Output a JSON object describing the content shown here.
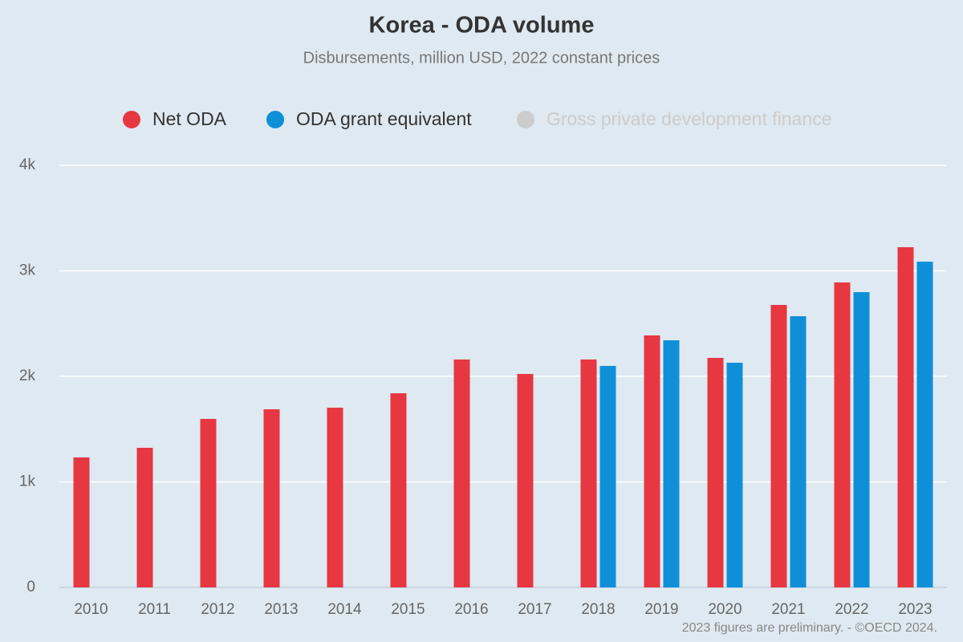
{
  "chart_data": {
    "type": "bar",
    "title": "Korea - ODA volume",
    "subtitle": "Disbursements, million USD, 2022 constant prices",
    "footnote": "2023 figures are preliminary. - ©OECD 2024.",
    "categories": [
      "2010",
      "2011",
      "2012",
      "2013",
      "2014",
      "2015",
      "2016",
      "2017",
      "2018",
      "2019",
      "2020",
      "2021",
      "2022",
      "2023"
    ],
    "series": [
      {
        "name": "Net ODA",
        "color": "#e73741",
        "values": [
          1232,
          1323,
          1597,
          1688,
          1703,
          1840,
          2160,
          2023,
          2160,
          2388,
          2175,
          2677,
          2890,
          3224
        ]
      },
      {
        "name": "ODA grant equivalent",
        "color": "#0f8fd8",
        "values": [
          null,
          null,
          null,
          null,
          null,
          null,
          null,
          null,
          2099,
          2342,
          2129,
          2570,
          2798,
          3087
        ]
      },
      {
        "name": "Gross private development finance",
        "color": "#cccccc",
        "visible": false,
        "values": [
          null,
          null,
          null,
          null,
          null,
          null,
          null,
          null,
          null,
          null,
          null,
          null,
          null,
          null
        ]
      }
    ],
    "ylim": [
      0,
      4000
    ],
    "yticks": [
      0,
      {
        "value": 1000,
        "label": "1k"
      },
      {
        "value": 2000,
        "label": "2k"
      },
      {
        "value": 3000,
        "label": "3k"
      },
      {
        "value": 4000,
        "label": "4k"
      }
    ],
    "grid": true
  }
}
